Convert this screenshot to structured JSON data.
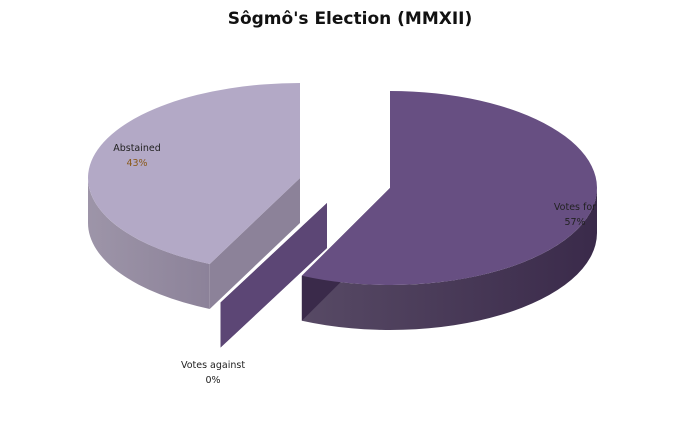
{
  "chart_data": {
    "type": "pie",
    "title": "Sôgmô's Election (MMXII)",
    "three_d": true,
    "exploded": true,
    "slices": [
      {
        "name": "Votes for",
        "value": 57,
        "label": "57%",
        "color": "#674f82",
        "side_color": "#3a2a4a"
      },
      {
        "name": "Votes against",
        "value": 0,
        "label": "0%",
        "color": "#5c4675",
        "side_color": "#5c4675"
      },
      {
        "name": "Abstained",
        "value": 43,
        "label": "43%",
        "color": "#b3a9c6",
        "side_color": "#8c8299"
      }
    ]
  }
}
